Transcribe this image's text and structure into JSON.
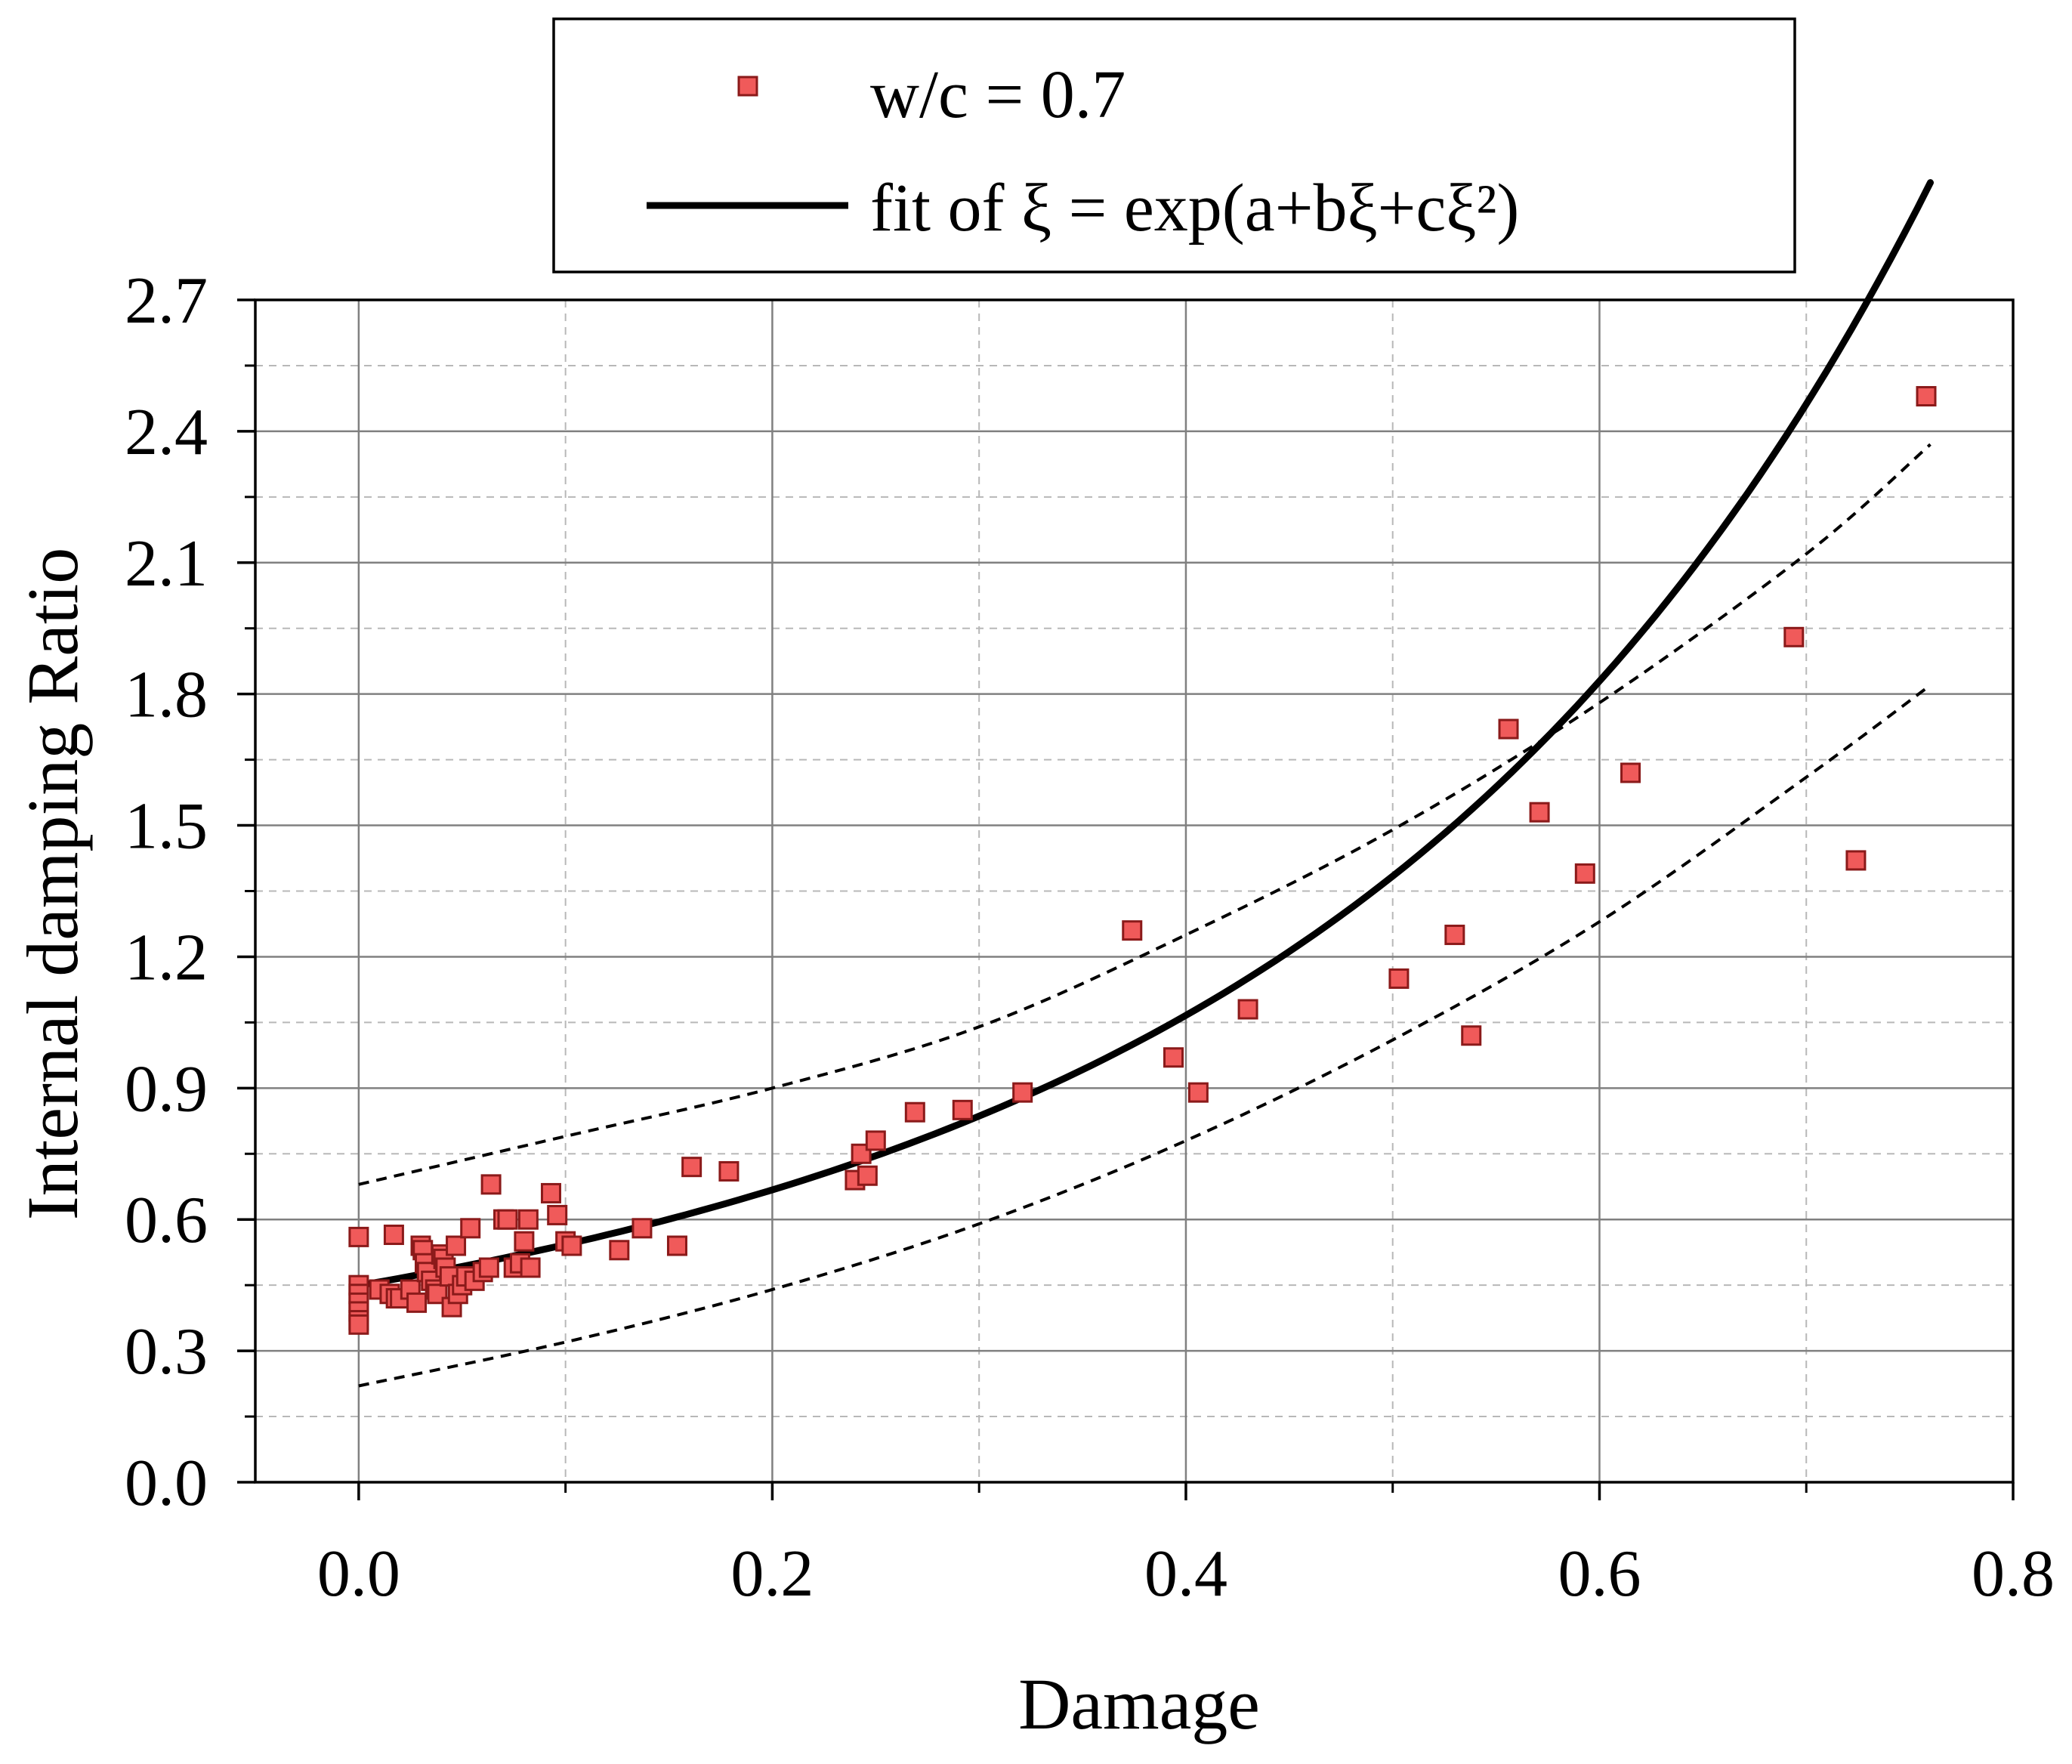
{
  "chart_data": {
    "type": "scatter",
    "title": "",
    "xlabel": "Damage",
    "ylabel": "Internal damping Ratio",
    "xlim": [
      -0.05,
      0.8
    ],
    "ylim": [
      0.0,
      2.7
    ],
    "x_ticks": [
      0.0,
      0.2,
      0.4,
      0.6,
      0.8
    ],
    "x_tick_labels": [
      "0.0",
      "0.2",
      "0.4",
      "0.6",
      "0.8"
    ],
    "y_ticks": [
      0.0,
      0.3,
      0.6,
      0.9,
      1.2,
      1.5,
      1.8,
      2.1,
      2.4,
      2.7
    ],
    "y_tick_labels": [
      "0.0",
      "0.3",
      "0.6",
      "0.9",
      "1.2",
      "1.5",
      "1.8",
      "2.1",
      "2.4",
      "2.7"
    ],
    "grid": true,
    "legend_position": "top-center, above plot",
    "legend": [
      {
        "label": "w/c = 0.7",
        "kind": "marker"
      },
      {
        "label": "fit of ξ = exp(a+bξ+cξ²)",
        "kind": "line"
      }
    ],
    "marker_color": "#f05a5a",
    "marker_edge_color": "#8b1a1a",
    "line_color": "#000000",
    "fit": {
      "a": -0.8,
      "b": 1.8,
      "c": 0.9,
      "x_range": [
        0.0,
        0.76
      ]
    },
    "confidence_band": {
      "upper": [
        [
          0.0,
          0.68
        ],
        [
          0.1,
          0.79
        ],
        [
          0.2,
          0.9
        ],
        [
          0.3,
          1.04
        ],
        [
          0.4,
          1.25
        ],
        [
          0.5,
          1.49
        ],
        [
          0.6,
          1.78
        ],
        [
          0.7,
          2.12
        ],
        [
          0.76,
          2.37
        ]
      ],
      "lower": [
        [
          0.0,
          0.22
        ],
        [
          0.1,
          0.32
        ],
        [
          0.2,
          0.44
        ],
        [
          0.3,
          0.59
        ],
        [
          0.4,
          0.78
        ],
        [
          0.5,
          1.01
        ],
        [
          0.6,
          1.28
        ],
        [
          0.7,
          1.61
        ],
        [
          0.76,
          1.82
        ]
      ]
    },
    "series": [
      {
        "name": "w/c = 0.7",
        "points": [
          [
            0.0,
            0.56
          ],
          [
            0.0,
            0.45
          ],
          [
            0.0,
            0.43
          ],
          [
            0.0,
            0.41
          ],
          [
            0.0,
            0.39
          ],
          [
            0.0,
            0.37
          ],
          [
            0.0,
            0.36
          ],
          [
            0.01,
            0.44
          ],
          [
            0.015,
            0.43
          ],
          [
            0.017,
            0.565
          ],
          [
            0.018,
            0.42
          ],
          [
            0.02,
            0.42
          ],
          [
            0.025,
            0.44
          ],
          [
            0.028,
            0.41
          ],
          [
            0.03,
            0.54
          ],
          [
            0.031,
            0.53
          ],
          [
            0.032,
            0.5
          ],
          [
            0.033,
            0.48
          ],
          [
            0.035,
            0.46
          ],
          [
            0.037,
            0.44
          ],
          [
            0.038,
            0.43
          ],
          [
            0.04,
            0.52
          ],
          [
            0.041,
            0.51
          ],
          [
            0.042,
            0.49
          ],
          [
            0.044,
            0.47
          ],
          [
            0.045,
            0.4
          ],
          [
            0.047,
            0.54
          ],
          [
            0.048,
            0.43
          ],
          [
            0.05,
            0.45
          ],
          [
            0.052,
            0.47
          ],
          [
            0.054,
            0.58
          ],
          [
            0.056,
            0.46
          ],
          [
            0.06,
            0.48
          ],
          [
            0.063,
            0.49
          ],
          [
            0.064,
            0.68
          ],
          [
            0.07,
            0.6
          ],
          [
            0.072,
            0.6
          ],
          [
            0.075,
            0.49
          ],
          [
            0.078,
            0.5
          ],
          [
            0.08,
            0.55
          ],
          [
            0.082,
            0.6
          ],
          [
            0.083,
            0.49
          ],
          [
            0.093,
            0.66
          ],
          [
            0.096,
            0.61
          ],
          [
            0.1,
            0.55
          ],
          [
            0.103,
            0.54
          ],
          [
            0.126,
            0.53
          ],
          [
            0.137,
            0.58
          ],
          [
            0.154,
            0.54
          ],
          [
            0.161,
            0.72
          ],
          [
            0.179,
            0.71
          ],
          [
            0.24,
            0.69
          ],
          [
            0.243,
            0.75
          ],
          [
            0.246,
            0.7
          ],
          [
            0.25,
            0.78
          ],
          [
            0.269,
            0.845
          ],
          [
            0.292,
            0.85
          ],
          [
            0.321,
            0.89
          ],
          [
            0.374,
            1.26
          ],
          [
            0.394,
            0.97
          ],
          [
            0.406,
            0.89
          ],
          [
            0.43,
            1.08
          ],
          [
            0.503,
            1.15
          ],
          [
            0.53,
            1.25
          ],
          [
            0.538,
            1.02
          ],
          [
            0.556,
            1.72
          ],
          [
            0.571,
            1.53
          ],
          [
            0.593,
            1.39
          ],
          [
            0.615,
            1.62
          ],
          [
            0.694,
            1.93
          ],
          [
            0.724,
            1.42
          ],
          [
            0.758,
            2.48
          ]
        ]
      }
    ]
  }
}
